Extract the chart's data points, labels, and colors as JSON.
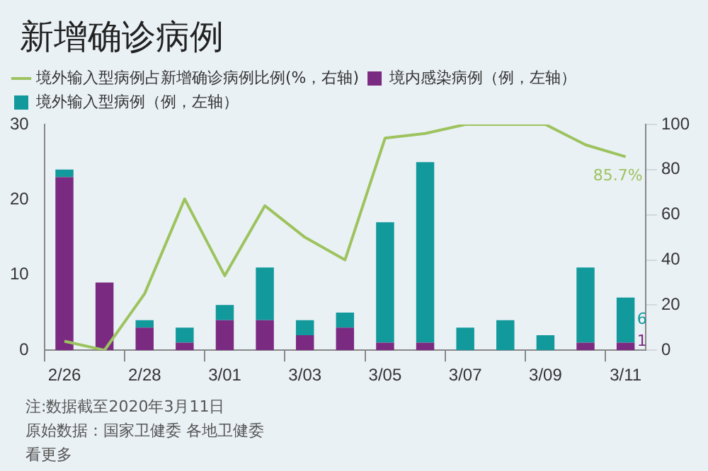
{
  "chart_data": {
    "type": "bar",
    "title": "新增确诊病例",
    "categories": [
      "2/26",
      null,
      "2/28",
      null,
      "3/01",
      null,
      "3/03",
      null,
      "3/05",
      null,
      "3/07",
      null,
      "3/09",
      null,
      "3/11"
    ],
    "stacked": true,
    "legend": "top left",
    "marker": "none",
    "ylim": [
      0,
      30
    ],
    "yticks": [
      0,
      10,
      20,
      30
    ],
    "y2lim": [
      0,
      100
    ],
    "y2ticks": [
      0,
      20,
      40,
      60,
      80,
      100
    ],
    "series": [
      {
        "name": "境内感染病例（例，左轴）",
        "color": "#7b2a82",
        "values": [
          23,
          9,
          3,
          1,
          4,
          4,
          2,
          3,
          1,
          1,
          0,
          0,
          0,
          1,
          1
        ],
        "value_labels": [
          null,
          null,
          null,
          null,
          null,
          null,
          null,
          null,
          null,
          null,
          null,
          null,
          null,
          null,
          "1"
        ]
      },
      {
        "name": "境外输入型病例（例，左轴）",
        "color": "#12999b",
        "values": [
          1,
          0,
          1,
          2,
          2,
          7,
          2,
          2,
          16,
          24,
          3,
          4,
          2,
          10,
          6
        ],
        "value_labels": [
          null,
          null,
          null,
          null,
          null,
          null,
          null,
          null,
          null,
          null,
          null,
          null,
          null,
          null,
          "6"
        ]
      },
      {
        "name": "境外输入型病例占新增确诊病例比例(%，右轴)",
        "type": "line",
        "axis": "y2",
        "color": "#9dc35f",
        "values": [
          4,
          0,
          25,
          67,
          33,
          64,
          50,
          40,
          94,
          96,
          100,
          100,
          100,
          91,
          85.7
        ],
        "value_labels": [
          null,
          null,
          null,
          null,
          null,
          null,
          null,
          null,
          null,
          null,
          null,
          null,
          null,
          null,
          "85.7%"
        ]
      }
    ],
    "annotations": [
      "注:数据截至2020年3月11日",
      "原始数据：国家卫健委 各地卫健委",
      "看更多"
    ]
  }
}
